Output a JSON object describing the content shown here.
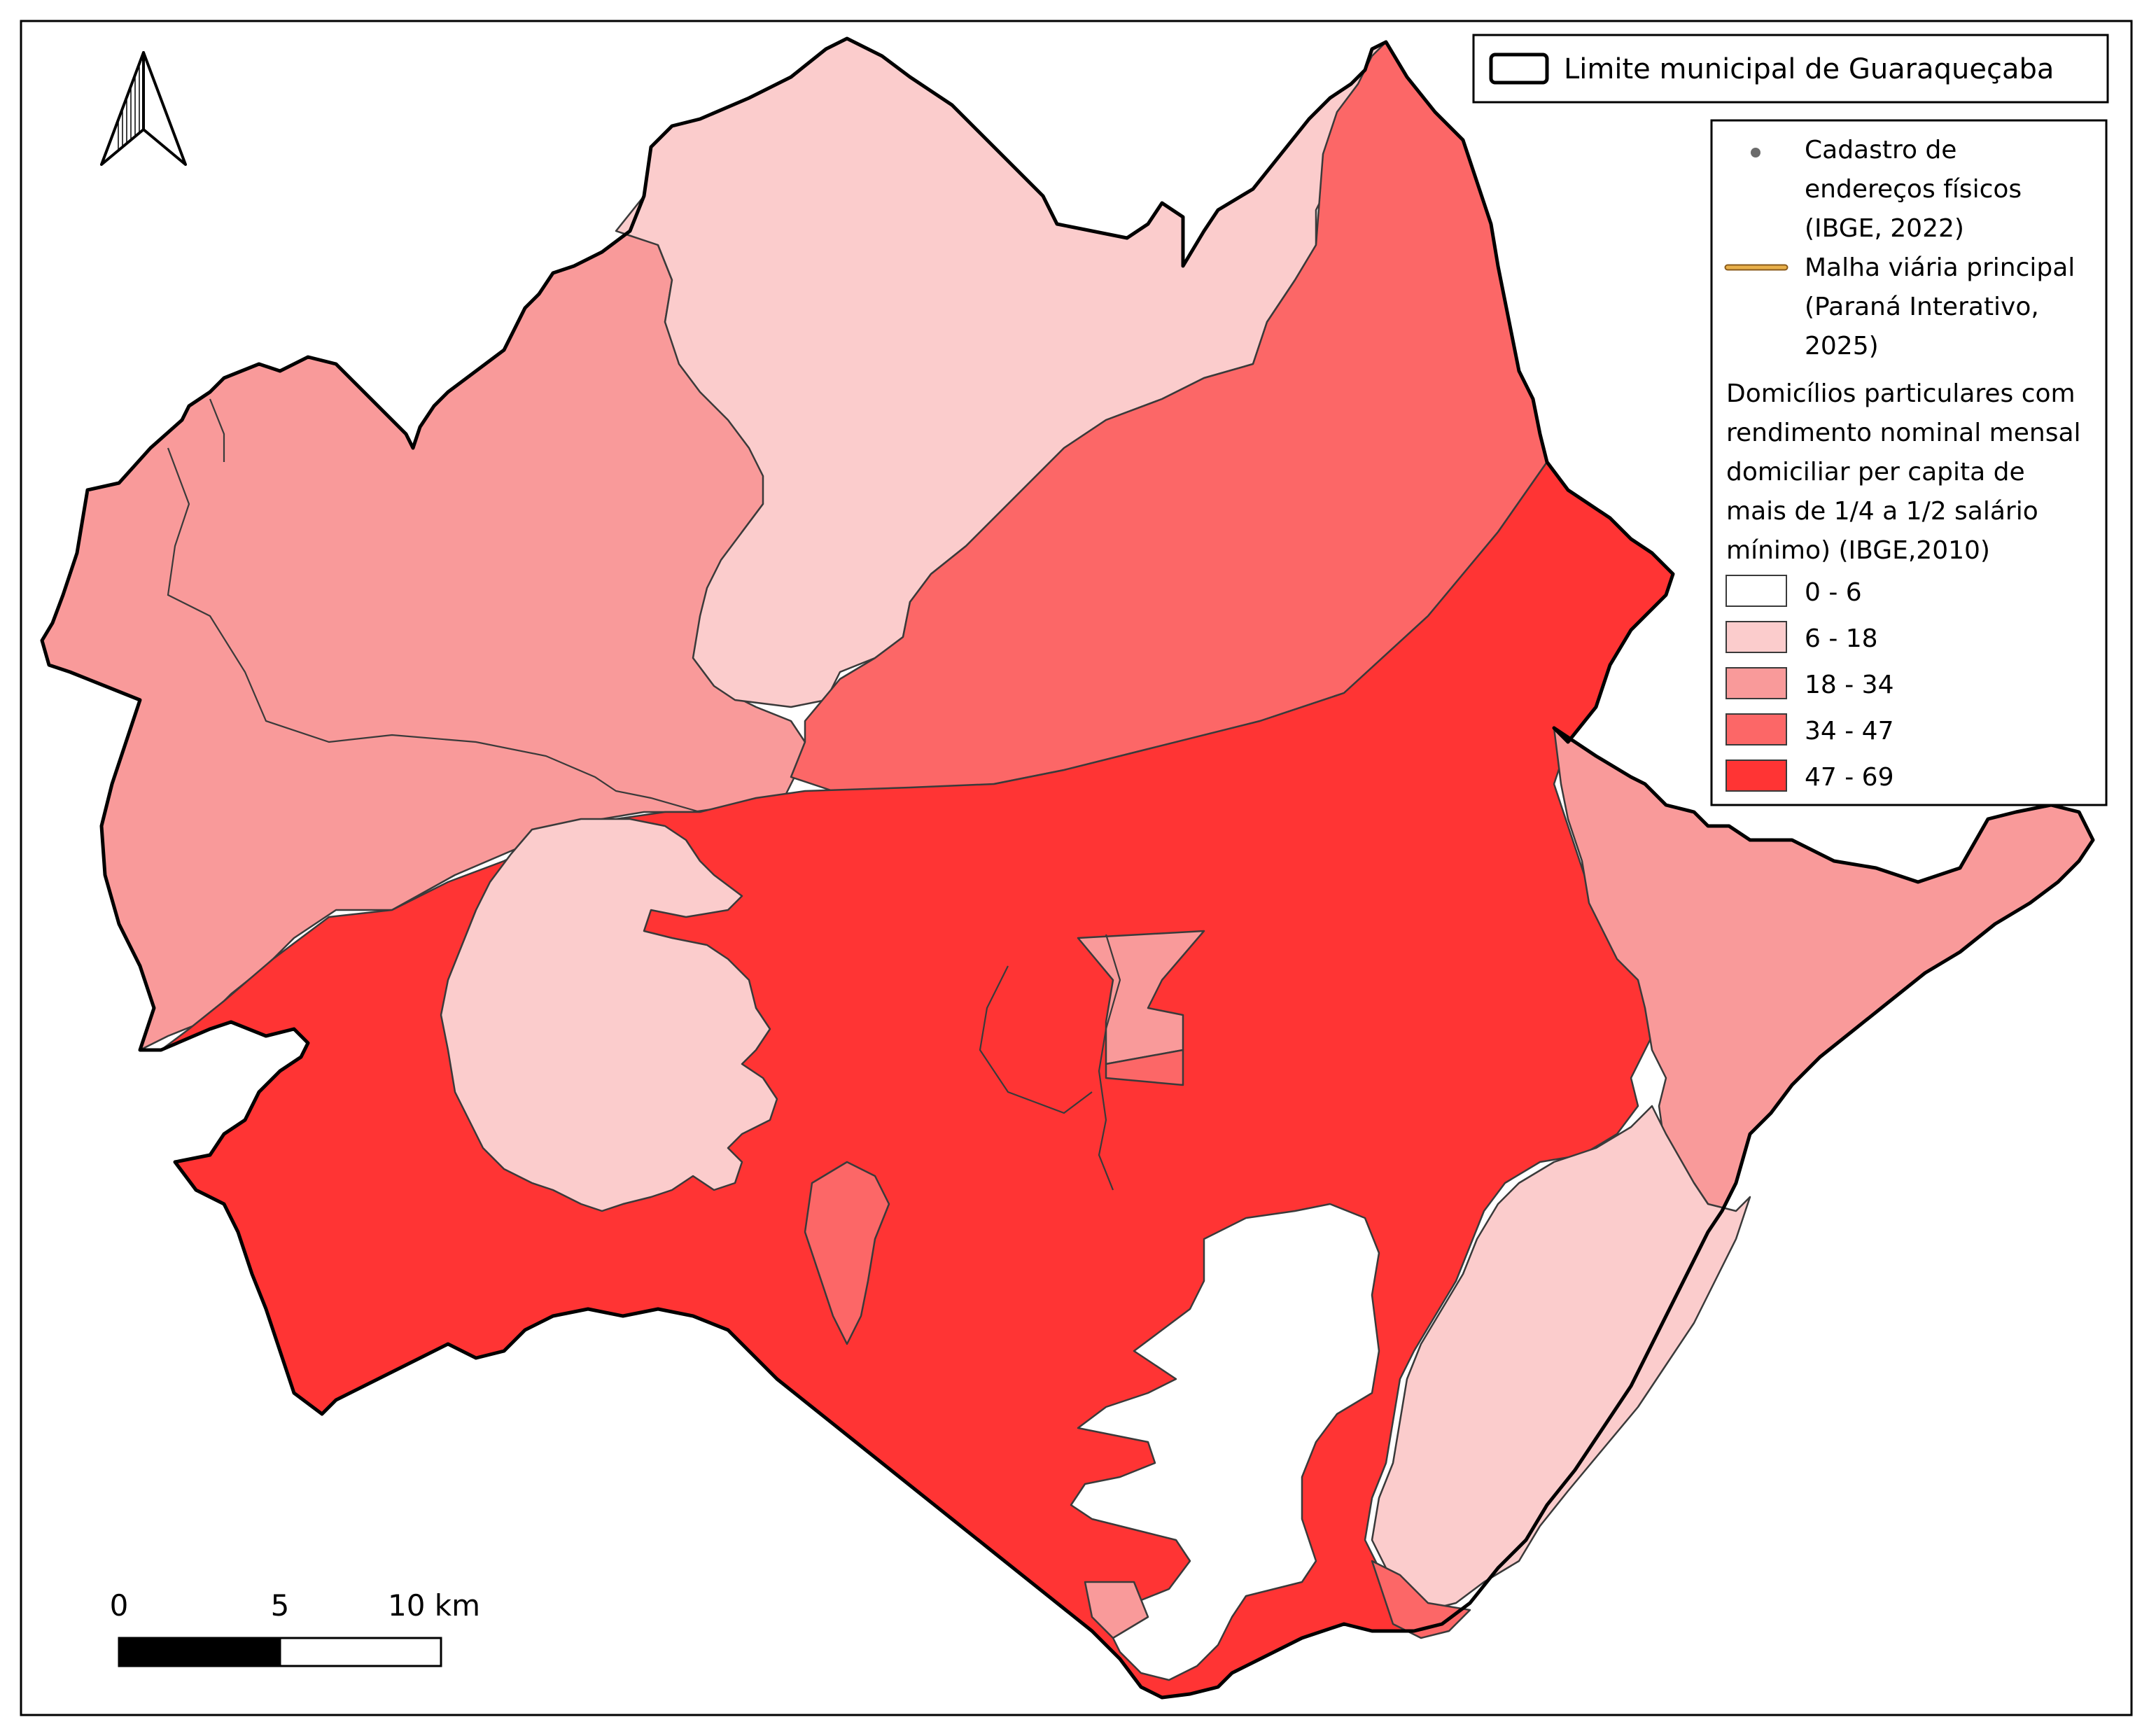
{
  "map": {
    "boundary_legend": {
      "label": "Limite municipal de Guaraqueçaba"
    },
    "legend": {
      "points": {
        "label_lines": [
          "Cadastro de",
          "endereços físicos",
          "(IBGE, 2022)"
        ]
      },
      "roads": {
        "label_lines": [
          "Malha viária principal",
          "(Paraná Interativo,",
          "2025)"
        ]
      },
      "title_lines": [
        "Domicílios particulares com",
        "rendimento nominal mensal",
        "domiciliar per capita de",
        "mais de 1/4 a 1/2 salário",
        "mínimo)  (IBGE,2010)"
      ],
      "classes": [
        {
          "label": "0 - 6",
          "color": "#ffffff"
        },
        {
          "label": "6 - 18",
          "color": "#fbcccc"
        },
        {
          "label": "18 - 34",
          "color": "#f99a9a"
        },
        {
          "label": "34 - 47",
          "color": "#fc6767"
        },
        {
          "label": "47 - 69",
          "color": "#ff3434"
        }
      ]
    },
    "scale_bar": {
      "labels": [
        "0",
        "5",
        "10 km"
      ]
    },
    "north_arrow": {
      "icon": "north-arrow-icon"
    },
    "colors": {
      "boundary": "#000000",
      "inner_lines": "#3a3a3a",
      "road": "#e8b04a"
    }
  }
}
